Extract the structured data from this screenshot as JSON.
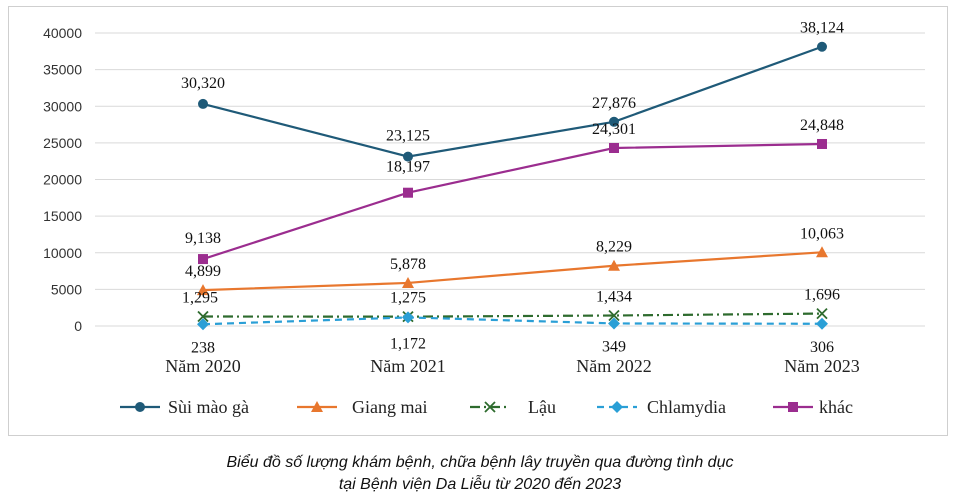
{
  "caption": {
    "line1": "Biểu đồ số lượng khám bệnh, chữa bệnh lây truyền qua đường tình dục",
    "line2": "tại Bệnh viện Da Liễu từ 2020 đến 2023"
  },
  "chart_data": {
    "type": "line",
    "categories": [
      "Năm 2020",
      "Năm 2021",
      "Năm 2022",
      "Năm 2023"
    ],
    "yticks": [
      "0",
      "5000",
      "10000",
      "15000",
      "20000",
      "25000",
      "30000",
      "35000",
      "40000"
    ],
    "ylim": [
      0,
      40000
    ],
    "grid": true,
    "legend_position": "bottom",
    "series": [
      {
        "name": "Sùi mào gà",
        "values": [
          30320,
          23125,
          27876,
          38124
        ],
        "labels": [
          "30,320",
          "23,125",
          "27,876",
          "38,124"
        ],
        "color": "#1f5a78",
        "marker": "circle",
        "dash": "solid"
      },
      {
        "name": "Giang mai",
        "values": [
          4899,
          5878,
          8229,
          10063
        ],
        "labels": [
          "4,899",
          "5,878",
          "8,229",
          "10,063"
        ],
        "color": "#e8772e",
        "marker": "triangle",
        "dash": "solid"
      },
      {
        "name": "Lậu",
        "values": [
          1295,
          1275,
          1434,
          1696
        ],
        "labels": [
          "1,295",
          "1,275",
          "1,434",
          "1,696"
        ],
        "color": "#2e6b2e",
        "marker": "x",
        "dash": "dashdot"
      },
      {
        "name": "Chlamydia",
        "values": [
          238,
          1172,
          349,
          306
        ],
        "labels": [
          "238",
          "1,172",
          "349",
          "306"
        ],
        "color": "#2a9fd6",
        "marker": "diamond",
        "dash": "dashed"
      },
      {
        "name": "khác",
        "values": [
          9138,
          18197,
          24301,
          24848
        ],
        "labels": [
          "9,138",
          "18,197",
          "24,301",
          "24,848"
        ],
        "color": "#9b2d8f",
        "marker": "square",
        "dash": "solid"
      }
    ]
  }
}
